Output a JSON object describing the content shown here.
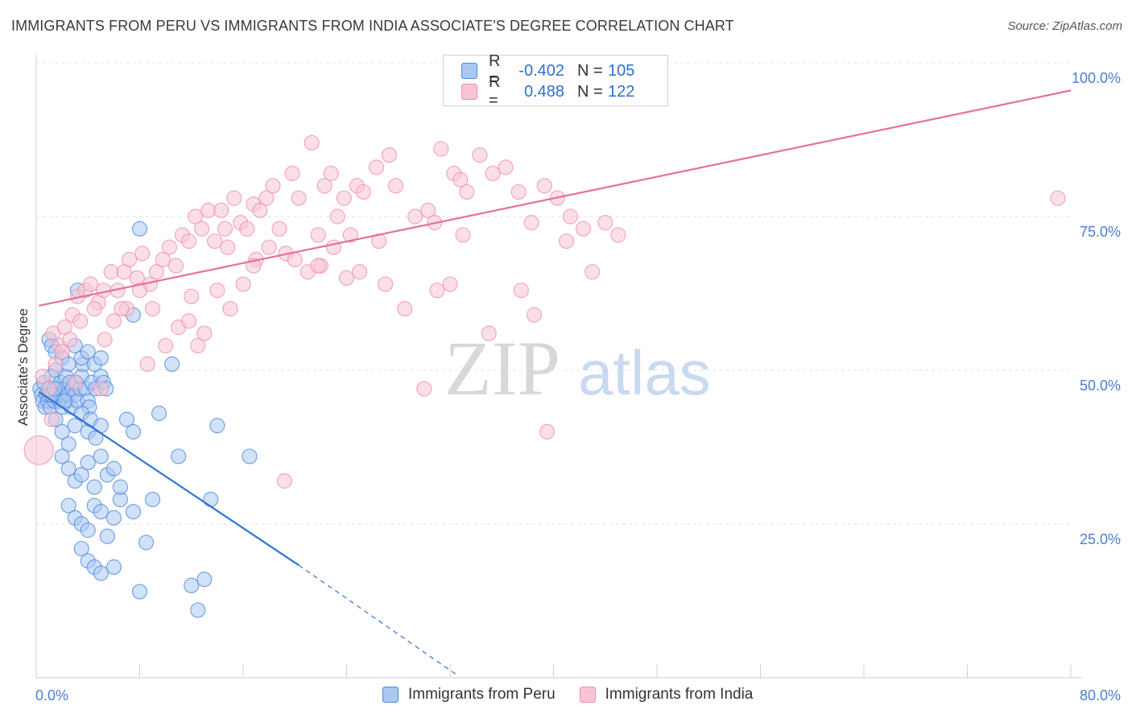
{
  "title": "IMMIGRANTS FROM PERU VS IMMIGRANTS FROM INDIA ASSOCIATE'S DEGREE CORRELATION CHART",
  "source": "Source: ZipAtlas.com",
  "watermark": {
    "zip": "ZIP",
    "atlas": "atlas"
  },
  "legend": {
    "rows": [
      {
        "r_label": "R =",
        "r_value": "-0.402",
        "n_label": "N =",
        "n_value": "105"
      },
      {
        "r_label": "R =",
        "r_value": "0.488",
        "n_label": "N =",
        "n_value": "122"
      }
    ]
  },
  "chart_data": {
    "type": "scatter",
    "title": "IMMIGRANTS FROM PERU VS IMMIGRANTS FROM INDIA ASSOCIATE'S DEGREE CORRELATION CHART",
    "xlabel": "",
    "ylabel": "Associate's Degree",
    "xlim": [
      0,
      80
    ],
    "ylim": [
      0,
      100
    ],
    "x_tick_labels": [
      "0.0%",
      "80.0%"
    ],
    "y_tick_labels": [
      "25.0%",
      "50.0%",
      "75.0%",
      "100.0%"
    ],
    "y_ticks": [
      25,
      50,
      75,
      100
    ],
    "grid": true,
    "legend_position": "top-center",
    "colors": {
      "peru_fill": "#a9c8f2",
      "peru_stroke": "#4f8ad9",
      "peru_line": "#2f74d0",
      "india_fill": "#f8c4d4",
      "india_stroke": "#ec8fae",
      "india_line": "#e5709a",
      "axis_label": "#4a7fd4"
    },
    "series": [
      {
        "name": "Immigrants from Peru",
        "color": "#4f8ad9",
        "trend": {
          "x": [
            0.2,
            20.3
          ],
          "y": [
            46.5,
            18.3
          ],
          "dashed_to": [
            32.5,
            0.5
          ]
        },
        "points": [
          [
            0.3,
            47
          ],
          [
            0.4,
            46
          ],
          [
            0.5,
            45
          ],
          [
            0.6,
            48
          ],
          [
            0.7,
            44
          ],
          [
            0.8,
            46
          ],
          [
            0.9,
            45
          ],
          [
            1.0,
            47
          ],
          [
            1.1,
            44
          ],
          [
            1.2,
            49
          ],
          [
            1.3,
            46
          ],
          [
            1.4,
            45
          ],
          [
            1.5,
            50
          ],
          [
            1.6,
            47
          ],
          [
            1.7,
            46
          ],
          [
            1.8,
            45
          ],
          [
            1.9,
            48
          ],
          [
            2.0,
            44
          ],
          [
            2.1,
            46
          ],
          [
            2.2,
            47
          ],
          [
            2.3,
            49
          ],
          [
            2.4,
            45
          ],
          [
            2.5,
            46
          ],
          [
            2.6,
            48
          ],
          [
            2.7,
            44
          ],
          [
            2.8,
            47
          ],
          [
            3.0,
            46
          ],
          [
            3.1,
            48
          ],
          [
            3.2,
            45
          ],
          [
            3.4,
            47
          ],
          [
            3.5,
            49
          ],
          [
            3.6,
            51
          ],
          [
            3.8,
            47
          ],
          [
            4.0,
            45
          ],
          [
            4.1,
            44
          ],
          [
            4.3,
            48
          ],
          [
            4.6,
            47
          ],
          [
            5.0,
            49
          ],
          [
            5.2,
            48
          ],
          [
            5.4,
            47
          ],
          [
            1.0,
            55
          ],
          [
            1.2,
            54
          ],
          [
            1.5,
            53
          ],
          [
            2.0,
            52
          ],
          [
            2.5,
            51
          ],
          [
            3.0,
            54
          ],
          [
            3.5,
            52
          ],
          [
            4.0,
            53
          ],
          [
            4.5,
            51
          ],
          [
            5.0,
            52
          ],
          [
            1.5,
            42
          ],
          [
            2.0,
            40
          ],
          [
            2.5,
            38
          ],
          [
            3.0,
            41
          ],
          [
            3.5,
            43
          ],
          [
            4.0,
            40
          ],
          [
            4.2,
            42
          ],
          [
            4.6,
            39
          ],
          [
            5.0,
            41
          ],
          [
            7.0,
            42
          ],
          [
            2.0,
            36
          ],
          [
            2.5,
            34
          ],
          [
            3.0,
            32
          ],
          [
            3.5,
            33
          ],
          [
            4.0,
            35
          ],
          [
            4.5,
            31
          ],
          [
            5.0,
            36
          ],
          [
            5.5,
            33
          ],
          [
            6.0,
            34
          ],
          [
            7.5,
            40
          ],
          [
            2.5,
            28
          ],
          [
            3.0,
            26
          ],
          [
            3.5,
            25
          ],
          [
            4.0,
            24
          ],
          [
            4.5,
            28
          ],
          [
            5.0,
            27
          ],
          [
            5.5,
            23
          ],
          [
            6.0,
            26
          ],
          [
            6.5,
            29
          ],
          [
            7.5,
            27
          ],
          [
            3.5,
            21
          ],
          [
            4.0,
            19
          ],
          [
            4.5,
            18
          ],
          [
            5.0,
            17
          ],
          [
            6.0,
            18
          ],
          [
            8.0,
            14
          ],
          [
            8.5,
            22
          ],
          [
            9.0,
            29
          ],
          [
            11.0,
            36
          ],
          [
            12.0,
            15
          ],
          [
            12.5,
            11
          ],
          [
            13.0,
            16
          ],
          [
            13.5,
            29
          ],
          [
            14.0,
            41
          ],
          [
            16.5,
            36
          ],
          [
            8.0,
            73
          ],
          [
            9.5,
            43
          ],
          [
            10.5,
            51
          ],
          [
            3.2,
            63
          ],
          [
            7.5,
            59
          ],
          [
            1.0,
            46
          ],
          [
            1.2,
            46
          ],
          [
            1.4,
            47
          ],
          [
            2.2,
            45
          ],
          [
            6.5,
            31
          ]
        ]
      },
      {
        "name": "Immigrants from India",
        "color": "#ec8fae",
        "trend": {
          "x": [
            0.2,
            80
          ],
          "y": [
            60.5,
            95.5
          ]
        },
        "points": [
          [
            0.2,
            37
          ],
          [
            0.5,
            49
          ],
          [
            1.0,
            47
          ],
          [
            1.3,
            56
          ],
          [
            1.8,
            54
          ],
          [
            2.2,
            57
          ],
          [
            2.8,
            59
          ],
          [
            3.2,
            62
          ],
          [
            3.8,
            63
          ],
          [
            4.2,
            64
          ],
          [
            4.8,
            61
          ],
          [
            5.2,
            63
          ],
          [
            5.8,
            66
          ],
          [
            6.3,
            63
          ],
          [
            6.8,
            66
          ],
          [
            7.2,
            68
          ],
          [
            7.8,
            65
          ],
          [
            8.2,
            69
          ],
          [
            8.8,
            64
          ],
          [
            9.3,
            66
          ],
          [
            9.8,
            68
          ],
          [
            10.3,
            70
          ],
          [
            10.8,
            67
          ],
          [
            11.3,
            72
          ],
          [
            11.8,
            71
          ],
          [
            12.3,
            75
          ],
          [
            12.8,
            73
          ],
          [
            13.3,
            76
          ],
          [
            13.8,
            71
          ],
          [
            14.3,
            76
          ],
          [
            14.8,
            70
          ],
          [
            15.3,
            78
          ],
          [
            15.8,
            74
          ],
          [
            16.3,
            73
          ],
          [
            16.8,
            77
          ],
          [
            17.3,
            76
          ],
          [
            17.8,
            78
          ],
          [
            18.3,
            80
          ],
          [
            18.8,
            73
          ],
          [
            19.3,
            69
          ],
          [
            19.8,
            82
          ],
          [
            20.3,
            78
          ],
          [
            21.3,
            87
          ],
          [
            21.8,
            72
          ],
          [
            22.3,
            80
          ],
          [
            22.8,
            82
          ],
          [
            23.3,
            75
          ],
          [
            23.8,
            78
          ],
          [
            24.3,
            72
          ],
          [
            24.8,
            80
          ],
          [
            25.3,
            79
          ],
          [
            26.3,
            83
          ],
          [
            27.3,
            85
          ],
          [
            27.8,
            80
          ],
          [
            29.3,
            75
          ],
          [
            30.3,
            76
          ],
          [
            30.8,
            74
          ],
          [
            31.3,
            86
          ],
          [
            32.3,
            82
          ],
          [
            32.8,
            81
          ],
          [
            33.3,
            79
          ],
          [
            34.3,
            85
          ],
          [
            35.3,
            82
          ],
          [
            36.3,
            83
          ],
          [
            37.3,
            79
          ],
          [
            38.3,
            74
          ],
          [
            39.3,
            80
          ],
          [
            40.3,
            78
          ],
          [
            41.3,
            75
          ],
          [
            42.3,
            73
          ],
          [
            1.5,
            51
          ],
          [
            2.0,
            53
          ],
          [
            2.6,
            55
          ],
          [
            3.4,
            58
          ],
          [
            4.5,
            60
          ],
          [
            5.3,
            55
          ],
          [
            6.0,
            58
          ],
          [
            7.0,
            60
          ],
          [
            8.0,
            63
          ],
          [
            9.0,
            60
          ],
          [
            10.0,
            54
          ],
          [
            11.0,
            57
          ],
          [
            12.0,
            62
          ],
          [
            13.0,
            56
          ],
          [
            14.0,
            63
          ],
          [
            15.0,
            60
          ],
          [
            16.0,
            64
          ],
          [
            17.0,
            68
          ],
          [
            18.0,
            70
          ],
          [
            20.0,
            68
          ],
          [
            21.0,
            66
          ],
          [
            22.0,
            67
          ],
          [
            23.0,
            70
          ],
          [
            24.0,
            65
          ],
          [
            25.0,
            66
          ],
          [
            26.5,
            71
          ],
          [
            27.0,
            64
          ],
          [
            28.5,
            60
          ],
          [
            30.0,
            47
          ],
          [
            31.0,
            63
          ],
          [
            32.0,
            64
          ],
          [
            33.0,
            72
          ],
          [
            35.0,
            56
          ],
          [
            37.5,
            63
          ],
          [
            38.5,
            59
          ],
          [
            39.5,
            40
          ],
          [
            41.0,
            71
          ],
          [
            43.0,
            66
          ],
          [
            44.0,
            74
          ],
          [
            45.0,
            72
          ],
          [
            16.8,
            67
          ],
          [
            19.2,
            32
          ],
          [
            21.8,
            67
          ],
          [
            14.6,
            73
          ],
          [
            6.6,
            60
          ],
          [
            5.0,
            47
          ],
          [
            3.0,
            48
          ],
          [
            11.8,
            58
          ],
          [
            8.6,
            51
          ],
          [
            12.5,
            54
          ],
          [
            79.0,
            78
          ],
          [
            1.2,
            42
          ]
        ]
      }
    ]
  },
  "bottom_legend": {
    "items": [
      {
        "label": "Immigrants from Peru"
      },
      {
        "label": "Immigrants from India"
      }
    ]
  }
}
